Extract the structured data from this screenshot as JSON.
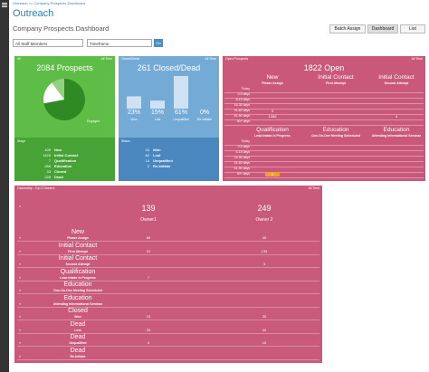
{
  "breadcrumb": "Outreach >> Company Prospects Dashboard",
  "header": {
    "title": "Outreach",
    "subtitle": "Company Prospects Dashboard"
  },
  "buttons": [
    "Batch Assign",
    "Dashboard",
    "List"
  ],
  "filters": {
    "staff": "All Staff Members",
    "timeframe": "Timeframe",
    "go": "Go"
  },
  "prospects": {
    "tag": "All",
    "range": "All Time",
    "title": "2084 Prospects",
    "pie": {
      "values": [
        72,
        18,
        10
      ],
      "legend": "Engaged"
    },
    "section": "Stage",
    "stages": [
      {
        "name": "New",
        "count": 109
      },
      {
        "name": "Initial Contact",
        "count": 1420
      },
      {
        "name": "Qualification",
        "count": 7
      },
      {
        "name": "Education",
        "count": 286
      },
      {
        "name": "Closed",
        "count": 33
      },
      {
        "name": "Dead",
        "count": 228
      }
    ]
  },
  "closed": {
    "tag": "Closed/Dead",
    "range": "All Time",
    "title": "261 Closed/Dead",
    "bars": [
      {
        "name": "Won",
        "value": 23,
        "value_label": "23%"
      },
      {
        "name": "Lost",
        "value": 15,
        "value_label": "15%"
      },
      {
        "name": "Unqualified",
        "value": 61,
        "value_label": "61%"
      },
      {
        "name": "Re-Initiate",
        "value": 0,
        "value_label": "0%"
      }
    ],
    "section": "Status",
    "statuses": [
      {
        "name": "Won",
        "count": 33
      },
      {
        "name": "Lost",
        "count": 62
      },
      {
        "name": "Unqualified",
        "count": 14
      },
      {
        "name": "Re-Initiate",
        "count": 2
      }
    ]
  },
  "open": {
    "tag": "Open Prospects",
    "range": "All Time",
    "title": "1822 Open",
    "row_labels": [
      "Today",
      "0-5 days",
      "6-15 days",
      "16-30 days",
      "31-60 days",
      "61-90 days",
      "90+ days"
    ],
    "groups": [
      {
        "columns": [
          {
            "stage": "New",
            "step": "Please Assign"
          },
          {
            "stage": "Initial Contact",
            "step": "First Attempt"
          },
          {
            "stage": "Initial Contact",
            "step": "Second Attempt"
          }
        ],
        "cells": [
          [
            null,
            null,
            null
          ],
          [
            null,
            null,
            null
          ],
          [
            null,
            null,
            null
          ],
          [
            null,
            null,
            null
          ],
          [
            3,
            null,
            null
          ],
          [
            1286,
            null,
            4
          ],
          [
            null,
            null,
            null
          ]
        ]
      },
      {
        "columns": [
          {
            "stage": "Qualification",
            "step": "Lead Intake in Progress"
          },
          {
            "stage": "Education",
            "step": "One-On-One Meeting Scheduled"
          },
          {
            "stage": "Education",
            "step": "Attending Informational Seminar"
          }
        ],
        "cells": [
          [
            null,
            null,
            null
          ],
          [
            null,
            null,
            null
          ],
          [
            null,
            null,
            null
          ],
          [
            null,
            null,
            null
          ],
          [
            null,
            null,
            null
          ],
          [
            null,
            null,
            null
          ],
          [
            3,
            null,
            null
          ]
        ]
      }
    ]
  },
  "ownership": {
    "title": "Ownership - Top 2 Owners",
    "range": "All Time",
    "owners": [
      {
        "total": 139,
        "name": "Owner1"
      },
      {
        "total": 249,
        "name": "Owner 2"
      }
    ],
    "rows": [
      {
        "stage": "New",
        "step": "Please Assign",
        "counts": [
          69,
          40
        ]
      },
      {
        "stage": "Initial Contact",
        "step": "First Attempt",
        "counts": [
          31,
          134
        ]
      },
      {
        "stage": "Initial Contact",
        "step": "Second Attempt",
        "counts": [
          null,
          3
        ]
      },
      {
        "stage": "Qualification",
        "step": "Lead Intake in Progress",
        "counts": [
          7,
          null
        ]
      },
      {
        "stage": "Education",
        "step": "One-On-One Meeting Scheduled",
        "counts": [
          null,
          null
        ]
      },
      {
        "stage": "Education",
        "step": "Attending Informational Seminar",
        "counts": [
          null,
          null
        ]
      },
      {
        "stage": "Closed",
        "step": "Won",
        "counts": [
          13,
          20
        ]
      },
      {
        "stage": "Dead",
        "step": "Lost",
        "counts": [
          20,
          42
        ]
      },
      {
        "stage": "Dead",
        "step": "Unqualified",
        "counts": [
          4,
          10
        ]
      },
      {
        "stage": "Dead",
        "step": "Re-Initiate",
        "counts": [
          null,
          null
        ]
      }
    ]
  }
}
